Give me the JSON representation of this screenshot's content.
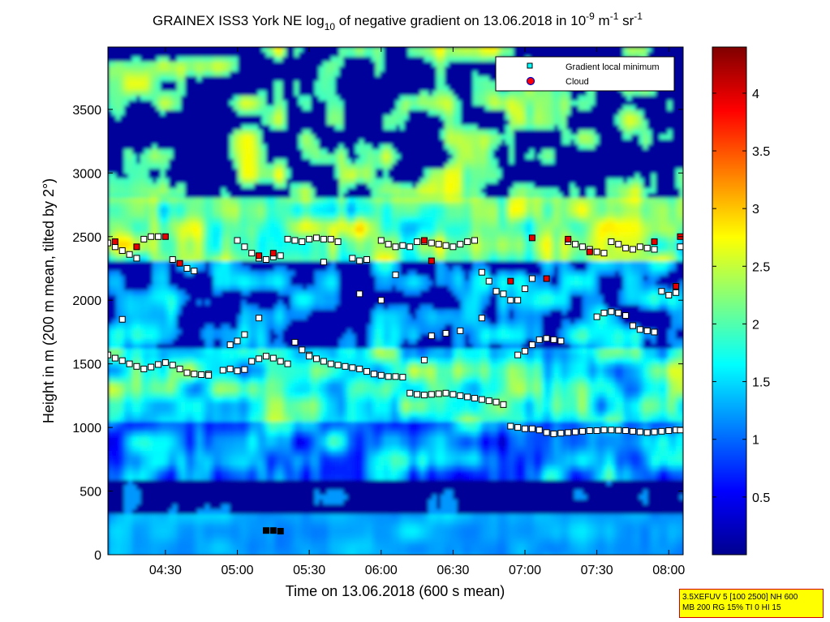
{
  "chart_data": {
    "type": "heatmap",
    "title_parts": {
      "pre": "GRAINEX ISS3 York NE log",
      "sub": "10",
      "mid": " of negative gradient on 13.06.2018 in 10",
      "sup1": "-9",
      "unit1": " m",
      "sup2": "-1",
      "unit2": " sr",
      "sup3": "-1"
    },
    "xlabel": "Time on 13.06.2018 (600 s mean)",
    "ylabel": "Height in m (200 m mean, tilted by 2°)",
    "x_ticks": [
      "04:30",
      "05:00",
      "05:30",
      "06:00",
      "06:30",
      "07:00",
      "07:30",
      "08:00"
    ],
    "x_tick_hours": [
      4.5,
      5.0,
      5.5,
      6.0,
      6.5,
      7.0,
      7.5,
      8.0
    ],
    "xlim_hours": [
      4.1,
      8.1
    ],
    "y_ticks": [
      "0",
      "500",
      "1000",
      "1500",
      "2000",
      "2500",
      "3000",
      "3500"
    ],
    "y_tick_values": [
      0,
      500,
      1000,
      1500,
      2000,
      2500,
      3000,
      3500
    ],
    "ylim": [
      0,
      3990
    ],
    "colorbar": {
      "ticks": [
        "0.5",
        "1",
        "1.5",
        "2",
        "2.5",
        "3",
        "3.5",
        "4"
      ],
      "tick_values": [
        0.5,
        1.0,
        1.5,
        2.0,
        2.5,
        3.0,
        3.5,
        4.0
      ],
      "range": [
        0,
        4.4
      ],
      "colormap": "jet"
    },
    "legend": {
      "position": "top-right",
      "entries": [
        {
          "label": "Gradient local minimum",
          "marker": "square",
          "color": "#00ffff"
        },
        {
          "label": "Cloud",
          "marker": "circle",
          "color": "#ff0000"
        }
      ]
    },
    "layers": [
      {
        "name": "surface",
        "base": 0,
        "top": 300,
        "level": 1.35
      },
      {
        "name": "low",
        "base": 300,
        "top": 600,
        "level": 0.25
      },
      {
        "name": "mixed-layer",
        "base": 600,
        "top": 1050,
        "level": 1.2
      },
      {
        "name": "entrainment",
        "base": 1050,
        "top": 1600,
        "level": 1.75
      },
      {
        "name": "residual",
        "base": 1600,
        "top": 2300,
        "level": 1.2
      },
      {
        "name": "upper-band",
        "base": 2300,
        "top": 2800,
        "level": 2.2
      },
      {
        "name": "aloft",
        "base": 2800,
        "top": 3990,
        "level": 1.1
      }
    ],
    "series": [
      {
        "name": "Gradient local minimum",
        "points": [
          [
            4.1,
            1570
          ],
          [
            4.15,
            1545
          ],
          [
            4.2,
            1525
          ],
          [
            4.25,
            1500
          ],
          [
            4.3,
            1480
          ],
          [
            4.35,
            1460
          ],
          [
            4.4,
            1475
          ],
          [
            4.45,
            1495
          ],
          [
            4.5,
            1510
          ],
          [
            4.55,
            1490
          ],
          [
            4.6,
            1460
          ],
          [
            4.65,
            1430
          ],
          [
            4.7,
            1420
          ],
          [
            4.75,
            1415
          ],
          [
            4.8,
            1420
          ],
          [
            4.9,
            1450
          ],
          [
            4.95,
            1460
          ],
          [
            5.0,
            1445
          ],
          [
            5.05,
            1455
          ],
          [
            5.1,
            1520
          ],
          [
            5.15,
            1540
          ],
          [
            5.2,
            1560
          ],
          [
            5.25,
            1545
          ],
          [
            5.3,
            1520
          ],
          [
            5.35,
            1500
          ],
          [
            5.4,
            1670
          ],
          [
            5.45,
            1610
          ],
          [
            5.5,
            1570
          ],
          [
            5.55,
            1540
          ],
          [
            5.6,
            1520
          ],
          [
            5.65,
            1500
          ],
          [
            5.7,
            1490
          ],
          [
            5.75,
            1480
          ],
          [
            5.8,
            1470
          ],
          [
            5.85,
            1460
          ],
          [
            5.9,
            1440
          ],
          [
            5.95,
            1420
          ],
          [
            6.0,
            1410
          ],
          [
            6.05,
            1400
          ],
          [
            6.1,
            1400
          ],
          [
            6.15,
            1395
          ],
          [
            6.2,
            1270
          ],
          [
            6.25,
            1260
          ],
          [
            6.3,
            1255
          ],
          [
            6.35,
            1260
          ],
          [
            6.4,
            1265
          ],
          [
            6.45,
            1270
          ],
          [
            6.5,
            1260
          ],
          [
            6.55,
            1250
          ],
          [
            6.6,
            1240
          ],
          [
            6.65,
            1230
          ],
          [
            6.7,
            1220
          ],
          [
            6.75,
            1210
          ],
          [
            6.8,
            1200
          ],
          [
            6.85,
            1180
          ],
          [
            6.9,
            1010
          ],
          [
            6.95,
            1000
          ],
          [
            7.0,
            990
          ],
          [
            7.05,
            990
          ],
          [
            7.1,
            980
          ],
          [
            7.15,
            960
          ],
          [
            7.2,
            950
          ],
          [
            7.25,
            955
          ],
          [
            7.3,
            960
          ],
          [
            7.35,
            965
          ],
          [
            7.4,
            970
          ],
          [
            7.45,
            975
          ],
          [
            7.5,
            975
          ],
          [
            7.55,
            980
          ],
          [
            7.6,
            980
          ],
          [
            7.65,
            978
          ],
          [
            7.7,
            975
          ],
          [
            7.75,
            970
          ],
          [
            7.8,
            965
          ],
          [
            7.85,
            960
          ],
          [
            7.9,
            965
          ],
          [
            7.95,
            970
          ],
          [
            8.0,
            975
          ],
          [
            8.05,
            980
          ],
          [
            8.08,
            980
          ],
          [
            4.1,
            2450
          ],
          [
            4.15,
            2420
          ],
          [
            4.2,
            2390
          ],
          [
            4.25,
            2360
          ],
          [
            4.3,
            2330
          ],
          [
            4.35,
            2480
          ],
          [
            4.4,
            2500
          ],
          [
            4.45,
            2500
          ],
          [
            4.55,
            2320
          ],
          [
            4.65,
            2250
          ],
          [
            4.7,
            2230
          ],
          [
            5.0,
            2470
          ],
          [
            5.05,
            2420
          ],
          [
            5.1,
            2370
          ],
          [
            5.15,
            2330
          ],
          [
            5.2,
            2320
          ],
          [
            5.25,
            2340
          ],
          [
            5.3,
            2350
          ],
          [
            5.35,
            2480
          ],
          [
            5.4,
            2470
          ],
          [
            5.45,
            2460
          ],
          [
            5.5,
            2480
          ],
          [
            5.55,
            2490
          ],
          [
            5.6,
            2480
          ],
          [
            5.65,
            2480
          ],
          [
            5.7,
            2460
          ],
          [
            5.8,
            2330
          ],
          [
            5.85,
            2310
          ],
          [
            5.9,
            2320
          ],
          [
            6.0,
            2470
          ],
          [
            6.05,
            2440
          ],
          [
            6.1,
            2420
          ],
          [
            6.15,
            2430
          ],
          [
            6.2,
            2420
          ],
          [
            6.25,
            2460
          ],
          [
            6.3,
            2460
          ],
          [
            6.35,
            2450
          ],
          [
            6.4,
            2440
          ],
          [
            6.45,
            2430
          ],
          [
            6.5,
            2420
          ],
          [
            6.55,
            2440
          ],
          [
            6.6,
            2460
          ],
          [
            6.65,
            2470
          ],
          [
            6.7,
            2220
          ],
          [
            6.75,
            2150
          ],
          [
            6.8,
            2070
          ],
          [
            6.85,
            2050
          ],
          [
            6.9,
            2000
          ],
          [
            6.95,
            2000
          ],
          [
            7.0,
            2090
          ],
          [
            7.05,
            2170
          ],
          [
            6.95,
            1570
          ],
          [
            7.0,
            1600
          ],
          [
            7.05,
            1650
          ],
          [
            7.1,
            1690
          ],
          [
            7.15,
            1700
          ],
          [
            7.2,
            1690
          ],
          [
            7.25,
            1680
          ],
          [
            7.3,
            2460
          ],
          [
            7.35,
            2440
          ],
          [
            7.4,
            2420
          ],
          [
            7.45,
            2400
          ],
          [
            7.5,
            2380
          ],
          [
            7.55,
            2370
          ],
          [
            7.6,
            2460
          ],
          [
            7.65,
            2440
          ],
          [
            7.7,
            2410
          ],
          [
            7.75,
            2400
          ],
          [
            7.8,
            2420
          ],
          [
            7.85,
            2410
          ],
          [
            7.9,
            2400
          ],
          [
            7.5,
            1870
          ],
          [
            7.55,
            1900
          ],
          [
            7.6,
            1910
          ],
          [
            7.65,
            1900
          ],
          [
            7.7,
            1880
          ],
          [
            7.75,
            1800
          ],
          [
            7.8,
            1770
          ],
          [
            7.85,
            1760
          ],
          [
            7.9,
            1750
          ],
          [
            7.95,
            2070
          ],
          [
            8.0,
            2040
          ],
          [
            8.05,
            2060
          ],
          [
            8.08,
            2420
          ],
          [
            4.2,
            1850
          ],
          [
            4.8,
            1410
          ],
          [
            4.95,
            1650
          ],
          [
            5.0,
            1680
          ],
          [
            5.05,
            1730
          ],
          [
            5.15,
            1860
          ],
          [
            5.5,
            1560
          ],
          [
            5.6,
            2300
          ],
          [
            5.85,
            2050
          ],
          [
            6.0,
            2000
          ],
          [
            6.1,
            2200
          ],
          [
            6.3,
            1530
          ],
          [
            6.35,
            1720
          ],
          [
            6.45,
            1740
          ],
          [
            6.55,
            1760
          ],
          [
            6.7,
            1860
          ],
          [
            5.2,
            190
          ],
          [
            5.25,
            190
          ],
          [
            5.3,
            185
          ]
        ]
      },
      {
        "name": "Cloud",
        "points": [
          [
            4.15,
            2460
          ],
          [
            4.3,
            2420
          ],
          [
            4.5,
            2500
          ],
          [
            4.6,
            2290
          ],
          [
            5.15,
            2350
          ],
          [
            5.25,
            2370
          ],
          [
            6.3,
            2470
          ],
          [
            6.35,
            2310
          ],
          [
            6.9,
            2150
          ],
          [
            7.05,
            2490
          ],
          [
            7.15,
            2170
          ],
          [
            7.3,
            2480
          ],
          [
            7.45,
            2380
          ],
          [
            7.9,
            2460
          ],
          [
            8.05,
            2110
          ],
          [
            8.08,
            2500
          ]
        ]
      }
    ]
  },
  "info_box": {
    "line1": "3.5XEFUV 5 [100 2500] NH 600",
    "line2": "MB 200 RG 15% TI 0 HI 15"
  }
}
